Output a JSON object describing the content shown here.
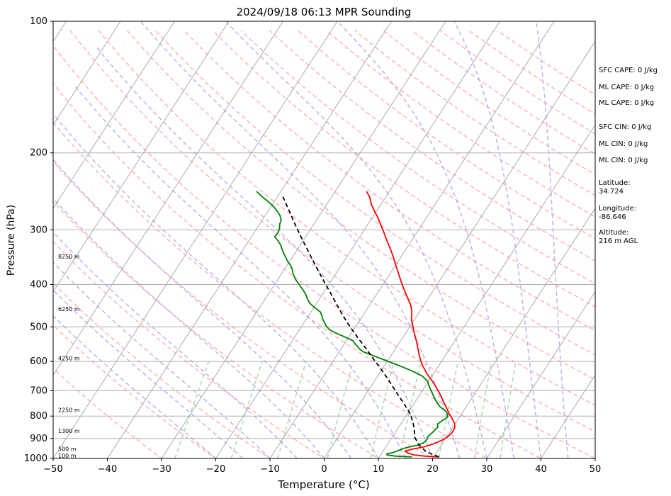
{
  "chart_data": {
    "type": "line",
    "title": "2024/09/18 06:13 MPR Sounding",
    "xlabel": "Temperature (°C)",
    "ylabel": "Pressure (hPa)",
    "xlim": [
      -50,
      50
    ],
    "ylim": [
      1000,
      100
    ],
    "y_scale": "log",
    "x_ticks": [
      "−50",
      "−40",
      "−30",
      "−20",
      "−10",
      "0",
      "10",
      "20",
      "30",
      "40",
      "50"
    ],
    "y_ticks": [
      "1000",
      "900",
      "800",
      "700",
      "600",
      "500",
      "400",
      "300",
      "200",
      "100"
    ],
    "grid": true,
    "background_lines": [
      "dry adiabats",
      "moist adiabats",
      "mixing ratio lines",
      "skewed isotherms"
    ],
    "height_labels": [
      {
        "label": "100 m",
        "p": 985
      },
      {
        "label": "500 m",
        "p": 950
      },
      {
        "label": "1300 m",
        "p": 865
      },
      {
        "label": "2250 m",
        "p": 775
      },
      {
        "label": "4250 m",
        "p": 590
      },
      {
        "label": "6250 m",
        "p": 455
      },
      {
        "label": "8250 m",
        "p": 345
      }
    ],
    "series": [
      {
        "color": "#ff0000",
        "points": [
          [
            21,
            992
          ],
          [
            18.4,
            988
          ],
          [
            16.2,
            982
          ],
          [
            14.8,
            972
          ],
          [
            14,
            962
          ],
          [
            15.2,
            952
          ],
          [
            17,
            941
          ],
          [
            18.5,
            925
          ],
          [
            19.6,
            908
          ],
          [
            20.2,
            892
          ],
          [
            20.5,
            870
          ],
          [
            20.4,
            850
          ],
          [
            19.8,
            830
          ],
          [
            18.8,
            810
          ],
          [
            17.8,
            792
          ],
          [
            17,
            776
          ],
          [
            16.2,
            760
          ],
          [
            15.2,
            742
          ],
          [
            14.2,
            722
          ],
          [
            12.8,
            698
          ],
          [
            11,
            670
          ],
          [
            8.8,
            640
          ],
          [
            6.8,
            610
          ],
          [
            5.4,
            585
          ],
          [
            4.2,
            562
          ],
          [
            3,
            540
          ],
          [
            1.8,
            520
          ],
          [
            0.6,
            500
          ],
          [
            -0.6,
            480
          ],
          [
            -1.5,
            460
          ],
          [
            -2.5,
            445
          ],
          [
            -3.8,
            430
          ],
          [
            -5.4,
            412
          ],
          [
            -7.1,
            393
          ],
          [
            -8.6,
            376
          ],
          [
            -10.1,
            360
          ],
          [
            -11.6,
            344
          ],
          [
            -13.1,
            330
          ],
          [
            -14.6,
            317
          ],
          [
            -16.1,
            304
          ],
          [
            -17.6,
            292
          ],
          [
            -19,
            281
          ],
          [
            -20.5,
            271
          ],
          [
            -21.8,
            262
          ],
          [
            -23,
            252
          ],
          [
            -24.2,
            245
          ]
        ]
      },
      {
        "color": "#008000",
        "points": [
          [
            16,
            992
          ],
          [
            13,
            988
          ],
          [
            11.2,
            982
          ],
          [
            11,
            976
          ],
          [
            12,
            970
          ],
          [
            12.5,
            962
          ],
          [
            13,
            955
          ],
          [
            13.5,
            948
          ],
          [
            14.5,
            940
          ],
          [
            15.8,
            932
          ],
          [
            16.5,
            920
          ],
          [
            16.7,
            905
          ],
          [
            16.5,
            890
          ],
          [
            16.8,
            876
          ],
          [
            17,
            862
          ],
          [
            17.2,
            848
          ],
          [
            16.8,
            834
          ],
          [
            17.3,
            818
          ],
          [
            17.8,
            805
          ],
          [
            17.5,
            792
          ],
          [
            16.8,
            780
          ],
          [
            15.2,
            762
          ],
          [
            13.8,
            740
          ],
          [
            12.6,
            718
          ],
          [
            11.5,
            698
          ],
          [
            10.5,
            680
          ],
          [
            9.8,
            665
          ],
          [
            8.2,
            648
          ],
          [
            5.6,
            630
          ],
          [
            3,
            615
          ],
          [
            0.2,
            600
          ],
          [
            -2.7,
            585
          ],
          [
            -5.6,
            570
          ],
          [
            -6.6,
            562
          ],
          [
            -7.4,
            553
          ],
          [
            -8.2,
            545
          ],
          [
            -8.9,
            537
          ],
          [
            -10.8,
            527
          ],
          [
            -12.8,
            517
          ],
          [
            -14.4,
            508
          ],
          [
            -15.5,
            498
          ],
          [
            -16.3,
            488
          ],
          [
            -17,
            480
          ],
          [
            -17.5,
            472
          ],
          [
            -18.3,
            462
          ],
          [
            -19.8,
            452
          ],
          [
            -21.2,
            442
          ],
          [
            -22.2,
            432
          ],
          [
            -23.1,
            421
          ],
          [
            -24.3,
            410
          ],
          [
            -25.6,
            399
          ],
          [
            -26.8,
            389
          ],
          [
            -27.8,
            379
          ],
          [
            -28.5,
            370
          ],
          [
            -29.3,
            362
          ],
          [
            -30.4,
            354
          ],
          [
            -31.3,
            346
          ],
          [
            -32.1,
            339
          ],
          [
            -32.9,
            332
          ],
          [
            -33.6,
            325
          ],
          [
            -34.6,
            318
          ],
          [
            -35.7,
            311
          ],
          [
            -35.6,
            305
          ],
          [
            -35.8,
            298
          ],
          [
            -36.3,
            291
          ],
          [
            -36.5,
            285
          ],
          [
            -37.3,
            278
          ],
          [
            -38.3,
            272
          ],
          [
            -39.4,
            266
          ],
          [
            -41,
            259
          ],
          [
            -42.8,
            252
          ],
          [
            -44.5,
            245
          ]
        ]
      },
      {
        "color": "#000000",
        "dashed": true,
        "points": [
          [
            21,
            992
          ],
          [
            18,
            965
          ],
          [
            15.8,
            930
          ],
          [
            14.2,
            895
          ],
          [
            13.2,
            860
          ],
          [
            12,
            825
          ],
          [
            10.5,
            790
          ],
          [
            8.5,
            755
          ],
          [
            6.3,
            720
          ],
          [
            4.1,
            686
          ],
          [
            1.8,
            652
          ],
          [
            -0.6,
            620
          ],
          [
            -3,
            590
          ],
          [
            -5.5,
            560
          ],
          [
            -8.2,
            530
          ],
          [
            -11,
            500
          ],
          [
            -13.6,
            472
          ],
          [
            -16,
            446
          ],
          [
            -18.5,
            420
          ],
          [
            -21,
            396
          ],
          [
            -23.5,
            373
          ],
          [
            -26,
            351
          ],
          [
            -28.5,
            330
          ],
          [
            -31,
            310
          ],
          [
            -33.5,
            291
          ],
          [
            -35.5,
            276
          ],
          [
            -37.5,
            262
          ],
          [
            -39,
            252
          ]
        ]
      }
    ]
  },
  "side_panel": {
    "sfc_cape": "SFC CAPE: 0 J/kg",
    "ml_cape_1": "ML CAPE: 0 J/kg",
    "ml_cape_2": "ML CAPE: 0 J/kg",
    "sfc_cin": "SFC CIN: 0 J/kg",
    "ml_cin_1": "ML CIN: 0 J/kg",
    "ml_cin_2": "ML CIN: 0 J/kg",
    "latitude_label": "Latitude:",
    "latitude_value": "34.724",
    "longitude_label": "Longitude:",
    "longitude_value": "-86.646",
    "altitude_label": "Altitude:",
    "altitude_value": "216 m AGL"
  }
}
